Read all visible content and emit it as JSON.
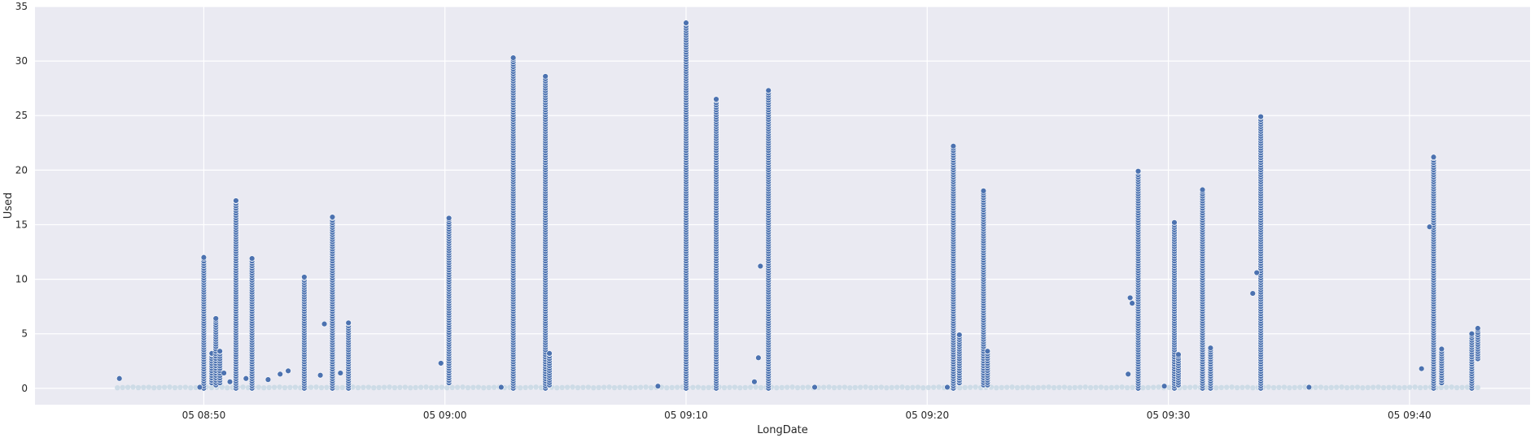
{
  "chart_data": {
    "type": "scatter",
    "title": "",
    "xlabel": "LongDate",
    "ylabel": "Used",
    "x_unit": "minute",
    "x_tick_labels": [
      "05 08:50",
      "05 09:00",
      "05 09:10",
      "05 09:20",
      "05 09:30",
      "05 09:40"
    ],
    "x_ticks": [
      "08:50",
      "09:00",
      "09:10",
      "09:20",
      "09:30",
      "09:40"
    ],
    "xlim": [
      "08:43",
      "09:45"
    ],
    "y_ticks": [
      0,
      5,
      10,
      15,
      20,
      25,
      30,
      35
    ],
    "ylim": [
      -1.5,
      35
    ],
    "grid": true,
    "background": "#EAEAF2",
    "grid_color": "#FFFFFF",
    "point_color": "#4C72B0",
    "baseline_color": "#C8D8E4",
    "baseline": {
      "from": "08:46:25",
      "to": "09:42:50",
      "value": 0.05
    },
    "spikes": [
      {
        "x": "08:50:00",
        "min": 0.0,
        "max": 12.0
      },
      {
        "x": "08:50:20",
        "min": 0.5,
        "max": 3.2
      },
      {
        "x": "08:50:30",
        "min": 0.3,
        "max": 6.4
      },
      {
        "x": "08:50:40",
        "min": 0.5,
        "max": 3.4
      },
      {
        "x": "08:51:20",
        "min": 0.0,
        "max": 17.2
      },
      {
        "x": "08:52:00",
        "min": 0.0,
        "max": 11.9
      },
      {
        "x": "08:54:10",
        "min": 0.0,
        "max": 10.2
      },
      {
        "x": "08:55:20",
        "min": 0.0,
        "max": 15.7
      },
      {
        "x": "08:56:00",
        "min": 0.0,
        "max": 6.0
      },
      {
        "x": "09:00:10",
        "min": 0.5,
        "max": 15.6
      },
      {
        "x": "09:02:50",
        "min": 0.0,
        "max": 30.3
      },
      {
        "x": "09:04:10",
        "min": 0.0,
        "max": 28.6
      },
      {
        "x": "09:04:20",
        "min": 0.3,
        "max": 3.2
      },
      {
        "x": "09:10:00",
        "min": 0.0,
        "max": 33.5
      },
      {
        "x": "09:11:15",
        "min": 0.0,
        "max": 26.5
      },
      {
        "x": "09:13:25",
        "min": 0.0,
        "max": 27.3
      },
      {
        "x": "09:21:05",
        "min": 0.0,
        "max": 22.2
      },
      {
        "x": "09:21:20",
        "min": 0.5,
        "max": 4.9
      },
      {
        "x": "09:22:20",
        "min": 0.3,
        "max": 18.1
      },
      {
        "x": "09:22:30",
        "min": 0.3,
        "max": 3.4
      },
      {
        "x": "09:28:45",
        "min": 0.0,
        "max": 19.9
      },
      {
        "x": "09:30:15",
        "min": 0.0,
        "max": 15.2
      },
      {
        "x": "09:30:25",
        "min": 0.3,
        "max": 3.1
      },
      {
        "x": "09:31:25",
        "min": 0.0,
        "max": 18.2
      },
      {
        "x": "09:31:45",
        "min": 0.0,
        "max": 3.7
      },
      {
        "x": "09:33:50",
        "min": 0.0,
        "max": 24.9
      },
      {
        "x": "09:41:00",
        "min": 0.0,
        "max": 21.2
      },
      {
        "x": "09:41:20",
        "min": 0.5,
        "max": 3.6
      },
      {
        "x": "09:42:35",
        "min": 0.0,
        "max": 5.0
      },
      {
        "x": "09:42:50",
        "min": 2.7,
        "max": 5.5
      }
    ],
    "extra_points": [
      {
        "x": "08:46:30",
        "y": 0.9
      },
      {
        "x": "08:49:50",
        "y": 0.1
      },
      {
        "x": "08:50:50",
        "y": 1.4
      },
      {
        "x": "08:51:05",
        "y": 0.6
      },
      {
        "x": "08:51:45",
        "y": 0.9
      },
      {
        "x": "08:52:40",
        "y": 0.8
      },
      {
        "x": "08:53:10",
        "y": 1.3
      },
      {
        "x": "08:53:30",
        "y": 1.6
      },
      {
        "x": "08:54:50",
        "y": 1.2
      },
      {
        "x": "08:55:00",
        "y": 5.9
      },
      {
        "x": "08:55:40",
        "y": 1.4
      },
      {
        "x": "08:59:50",
        "y": 2.3
      },
      {
        "x": "09:02:20",
        "y": 0.1
      },
      {
        "x": "09:08:50",
        "y": 0.2
      },
      {
        "x": "09:12:50",
        "y": 0.6
      },
      {
        "x": "09:13:00",
        "y": 2.8
      },
      {
        "x": "09:13:05",
        "y": 11.2
      },
      {
        "x": "09:15:20",
        "y": 0.1
      },
      {
        "x": "09:20:50",
        "y": 0.1
      },
      {
        "x": "09:28:20",
        "y": 1.3
      },
      {
        "x": "09:28:25",
        "y": 8.3
      },
      {
        "x": "09:28:30",
        "y": 7.8
      },
      {
        "x": "09:29:50",
        "y": 0.2
      },
      {
        "x": "09:33:30",
        "y": 8.7
      },
      {
        "x": "09:33:40",
        "y": 10.6
      },
      {
        "x": "09:35:50",
        "y": 0.1
      },
      {
        "x": "09:40:30",
        "y": 1.8
      },
      {
        "x": "09:40:50",
        "y": 14.8
      }
    ]
  }
}
